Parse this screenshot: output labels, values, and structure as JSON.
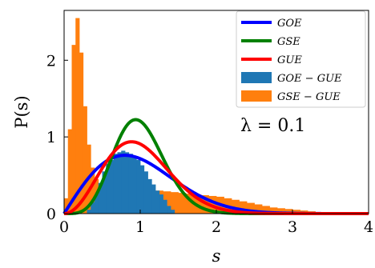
{
  "chart_data": {
    "type": "line",
    "title": "",
    "xlabel": "s",
    "ylabel": "P(s)",
    "xlim": [
      0,
      4
    ],
    "ylim": [
      0,
      2.65
    ],
    "x_ticks": [
      "0",
      "1",
      "2",
      "3",
      "4"
    ],
    "y_ticks": [
      "0",
      "1",
      "2"
    ],
    "legend_position": "top-right",
    "grid": false,
    "annotation": "λ = 0.1",
    "series": [
      {
        "name": "GOE",
        "kind": "curve",
        "color": "#0000ff",
        "formula": "goe"
      },
      {
        "name": "GSE",
        "kind": "curve",
        "color": "#008000",
        "formula": "gse"
      },
      {
        "name": "GUE",
        "kind": "curve",
        "color": "#ff0000",
        "formula": "gue"
      },
      {
        "name": "GOE − GUE",
        "kind": "histogram",
        "color": "#1f77b4",
        "x": [
          0.3,
          0.35,
          0.4,
          0.45,
          0.5,
          0.55,
          0.6,
          0.65,
          0.7,
          0.75,
          0.8,
          0.85,
          0.9,
          0.95,
          1.0,
          1.05,
          1.1,
          1.15,
          1.2,
          1.25,
          1.3,
          1.35,
          1.4
        ],
        "values": [
          0.05,
          0.15,
          0.25,
          0.4,
          0.55,
          0.65,
          0.7,
          0.78,
          0.8,
          0.82,
          0.8,
          0.78,
          0.75,
          0.7,
          0.63,
          0.55,
          0.45,
          0.38,
          0.3,
          0.25,
          0.18,
          0.1,
          0.05
        ]
      },
      {
        "name": "GSE − GUE",
        "kind": "histogram",
        "color": "#ff7f0e",
        "x": [
          0.0,
          0.05,
          0.1,
          0.15,
          0.2,
          0.25,
          0.3,
          0.35,
          0.4,
          0.45,
          0.5,
          0.6,
          0.7,
          0.8,
          0.9,
          1.0,
          1.1,
          1.2,
          1.3,
          1.4,
          1.5,
          1.6,
          1.7,
          1.8,
          1.9,
          2.0,
          2.1,
          2.2,
          2.3,
          2.4,
          2.5,
          2.6,
          2.7,
          2.8,
          2.9,
          3.0,
          3.1,
          3.2,
          3.3
        ],
        "values": [
          0.2,
          1.1,
          2.2,
          2.55,
          2.1,
          1.4,
          0.9,
          0.6,
          0.45,
          0.35,
          0.3,
          0.28,
          0.27,
          0.28,
          0.3,
          0.3,
          0.3,
          0.3,
          0.29,
          0.28,
          0.27,
          0.26,
          0.25,
          0.24,
          0.23,
          0.22,
          0.2,
          0.18,
          0.16,
          0.14,
          0.12,
          0.1,
          0.08,
          0.07,
          0.06,
          0.05,
          0.04,
          0.03,
          0.02
        ]
      }
    ]
  }
}
